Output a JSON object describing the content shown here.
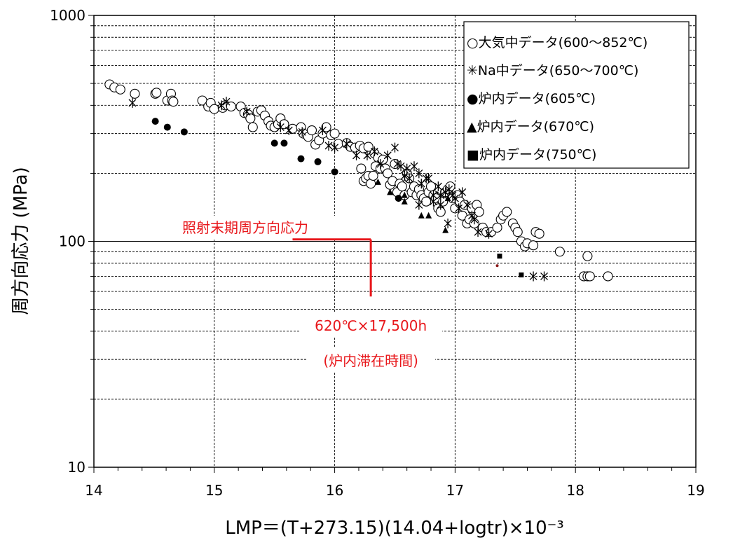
{
  "chart_data": {
    "type": "scatter",
    "xlabel": "LMP＝(T+273.15)(14.04+logtr)×10⁻³",
    "ylabel": "周方向応力 (MPa)",
    "xlim": [
      14,
      19
    ],
    "ylim": [
      10,
      1000
    ],
    "y_scale": "log",
    "x_ticks": [
      "14",
      "15",
      "16",
      "17",
      "18",
      "19"
    ],
    "y_ticks": [
      "10",
      "100",
      "1000"
    ],
    "grid": "horizontal dashed at y-axis minor ticks; solid at decades",
    "legend_position": "top-right",
    "series": [
      {
        "name": "○大気中データ(600～852℃)",
        "marker": "open-circle",
        "points": [
          [
            14.13,
            495
          ],
          [
            14.17,
            480
          ],
          [
            14.22,
            470
          ],
          [
            14.34,
            450
          ],
          [
            14.51,
            450
          ],
          [
            14.52,
            455
          ],
          [
            14.61,
            420
          ],
          [
            14.64,
            450
          ],
          [
            14.65,
            420
          ],
          [
            14.66,
            415
          ],
          [
            14.9,
            420
          ],
          [
            14.95,
            395
          ],
          [
            14.97,
            410
          ],
          [
            15.0,
            385
          ],
          [
            15.07,
            390
          ],
          [
            15.09,
            400
          ],
          [
            15.14,
            395
          ],
          [
            15.22,
            395
          ],
          [
            15.25,
            370
          ],
          [
            15.28,
            365
          ],
          [
            15.3,
            350
          ],
          [
            15.32,
            320
          ],
          [
            15.36,
            375
          ],
          [
            15.39,
            380
          ],
          [
            15.42,
            360
          ],
          [
            15.45,
            340
          ],
          [
            15.47,
            325
          ],
          [
            15.5,
            320
          ],
          [
            15.53,
            330
          ],
          [
            15.55,
            350
          ],
          [
            15.58,
            330
          ],
          [
            15.65,
            315
          ],
          [
            15.72,
            320
          ],
          [
            15.74,
            300
          ],
          [
            15.78,
            290
          ],
          [
            15.81,
            310
          ],
          [
            15.84,
            268
          ],
          [
            15.87,
            280
          ],
          [
            15.9,
            300
          ],
          [
            15.93,
            320
          ],
          [
            15.97,
            295
          ],
          [
            16.0,
            300
          ],
          [
            16.03,
            270
          ],
          [
            16.1,
            272
          ],
          [
            16.13,
            262
          ],
          [
            16.17,
            260
          ],
          [
            16.21,
            265
          ],
          [
            16.24,
            258
          ],
          [
            16.28,
            262
          ],
          [
            16.33,
            245
          ],
          [
            16.22,
            210
          ],
          [
            16.24,
            185
          ],
          [
            16.26,
            190
          ],
          [
            16.28,
            195
          ],
          [
            16.3,
            180
          ],
          [
            16.32,
            195
          ],
          [
            16.34,
            215
          ],
          [
            16.36,
            235
          ],
          [
            16.38,
            210
          ],
          [
            16.4,
            230
          ],
          [
            16.42,
            210
          ],
          [
            16.44,
            200
          ],
          [
            16.46,
            178
          ],
          [
            16.48,
            185
          ],
          [
            16.5,
            220
          ],
          [
            16.52,
            165
          ],
          [
            16.54,
            180
          ],
          [
            16.56,
            175
          ],
          [
            16.58,
            160
          ],
          [
            16.6,
            200
          ],
          [
            16.62,
            190
          ],
          [
            16.64,
            165
          ],
          [
            16.66,
            175
          ],
          [
            16.68,
            160
          ],
          [
            16.7,
            170
          ],
          [
            16.72,
            160
          ],
          [
            16.74,
            155
          ],
          [
            16.76,
            150
          ],
          [
            16.78,
            165
          ],
          [
            16.8,
            175
          ],
          [
            16.82,
            160
          ],
          [
            16.84,
            155
          ],
          [
            16.86,
            140
          ],
          [
            16.88,
            135
          ],
          [
            16.9,
            150
          ],
          [
            16.92,
            165
          ],
          [
            16.94,
            170
          ],
          [
            16.96,
            175
          ],
          [
            16.98,
            155
          ],
          [
            17.0,
            140
          ],
          [
            17.02,
            160
          ],
          [
            17.04,
            150
          ],
          [
            17.06,
            130
          ],
          [
            17.08,
            145
          ],
          [
            17.1,
            120
          ],
          [
            17.12,
            125
          ],
          [
            17.14,
            140
          ],
          [
            17.16,
            120
          ],
          [
            17.18,
            145
          ],
          [
            17.2,
            135
          ],
          [
            17.23,
            115
          ],
          [
            17.26,
            110
          ],
          [
            17.3,
            110
          ],
          [
            17.35,
            115
          ],
          [
            17.38,
            125
          ],
          [
            17.4,
            130
          ],
          [
            17.43,
            135
          ],
          [
            17.48,
            120
          ],
          [
            17.5,
            115
          ],
          [
            17.52,
            110
          ],
          [
            17.55,
            100
          ],
          [
            17.58,
            95
          ],
          [
            17.6,
            98
          ],
          [
            17.65,
            96
          ],
          [
            17.67,
            110
          ],
          [
            17.7,
            108
          ],
          [
            17.87,
            90
          ],
          [
            18.07,
            70
          ],
          [
            18.1,
            70
          ],
          [
            18.12,
            70
          ],
          [
            18.1,
            86
          ],
          [
            18.27,
            70
          ]
        ]
      },
      {
        "name": "✳Na中データ(650～700℃)",
        "marker": "asterisk",
        "points": [
          [
            14.32,
            410
          ],
          [
            15.06,
            400
          ],
          [
            15.1,
            415
          ],
          [
            15.27,
            375
          ],
          [
            15.55,
            320
          ],
          [
            15.62,
            310
          ],
          [
            15.73,
            305
          ],
          [
            15.9,
            310
          ],
          [
            15.95,
            265
          ],
          [
            16.0,
            260
          ],
          [
            16.1,
            270
          ],
          [
            16.18,
            240
          ],
          [
            16.27,
            240
          ],
          [
            16.33,
            250
          ],
          [
            16.38,
            220
          ],
          [
            16.44,
            240
          ],
          [
            16.5,
            260
          ],
          [
            16.52,
            220
          ],
          [
            16.55,
            215
          ],
          [
            16.58,
            195
          ],
          [
            16.6,
            210
          ],
          [
            16.62,
            190
          ],
          [
            16.66,
            215
          ],
          [
            16.7,
            200
          ],
          [
            16.72,
            180
          ],
          [
            16.76,
            190
          ],
          [
            16.78,
            190
          ],
          [
            16.82,
            160
          ],
          [
            16.86,
            175
          ],
          [
            16.88,
            160
          ],
          [
            16.92,
            165
          ],
          [
            16.95,
            170
          ],
          [
            16.98,
            160
          ],
          [
            17.0,
            155
          ],
          [
            17.03,
            140
          ],
          [
            17.06,
            165
          ],
          [
            17.1,
            145
          ],
          [
            17.14,
            130
          ],
          [
            17.16,
            125
          ],
          [
            17.19,
            110
          ],
          [
            17.28,
            108
          ],
          [
            16.88,
            145
          ],
          [
            16.94,
            120
          ],
          [
            16.7,
            145
          ],
          [
            16.82,
            150
          ],
          [
            17.65,
            70
          ],
          [
            17.74,
            70
          ]
        ]
      },
      {
        "name": "●炉内データ(605℃)",
        "marker": "filled-circle",
        "points": [
          [
            14.51,
            340
          ],
          [
            14.61,
            320
          ],
          [
            14.75,
            305
          ],
          [
            15.5,
            272
          ],
          [
            15.58,
            272
          ],
          [
            15.72,
            232
          ],
          [
            15.86,
            225
          ],
          [
            16.0,
            203
          ],
          [
            16.53,
            155
          ]
        ]
      },
      {
        "name": "▲炉内データ(670℃)",
        "marker": "filled-triangle",
        "points": [
          [
            16.36,
            183
          ],
          [
            16.46,
            165
          ],
          [
            16.58,
            160
          ],
          [
            16.58,
            150
          ],
          [
            16.72,
            130
          ],
          [
            16.78,
            130
          ],
          [
            16.92,
            112
          ],
          [
            16.94,
            155
          ]
        ]
      },
      {
        "name": "■炉内データ(750℃)",
        "marker": "filled-square",
        "points": [
          [
            17.37,
            86
          ],
          [
            17.55,
            71
          ]
        ]
      }
    ],
    "extra_markers": [
      [
        17.35,
        78
      ]
    ],
    "annotations": [
      {
        "text": "照射末期周方向応力",
        "type": "hline",
        "y": 102,
        "x_from": 15.65,
        "x_to": 16.3
      },
      {
        "text": "620℃×17,500h",
        "type": "vline",
        "x": 16.3,
        "y_from": 102,
        "y_to": 57
      },
      {
        "text": "(炉内滞在時間)",
        "type": "label"
      }
    ],
    "colors": {
      "marker": "#000000",
      "annotation": "#e8171b",
      "grid": "#000000",
      "extra_marker": "#8b1a1a"
    }
  }
}
